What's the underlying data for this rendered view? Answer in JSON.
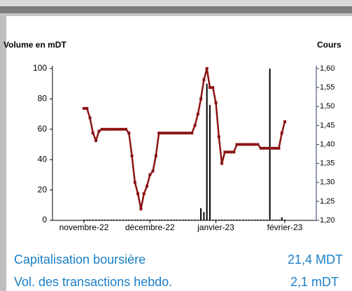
{
  "chart_data": {
    "type": "bar-line",
    "y_label": "Volume en mDT",
    "y2_label": "Cours",
    "categories": [
      null,
      null,
      null,
      null,
      null,
      null,
      null,
      null,
      null,
      null,
      "novembre-22",
      null,
      null,
      null,
      null,
      null,
      null,
      null,
      null,
      null,
      null,
      null,
      null,
      null,
      null,
      null,
      null,
      null,
      null,
      null,
      null,
      null,
      "décembre-22",
      null,
      null,
      null,
      null,
      null,
      null,
      null,
      null,
      null,
      null,
      null,
      null,
      null,
      null,
      null,
      null,
      null,
      null,
      null,
      null,
      null,
      "janvier-23",
      null,
      null,
      null,
      null,
      null,
      null,
      null,
      null,
      null,
      null,
      null,
      null,
      null,
      null,
      null,
      null,
      null,
      null,
      null,
      null,
      null,
      null,
      "février-23",
      null,
      null,
      null,
      null,
      null,
      null,
      null,
      null,
      null,
      null
    ],
    "series": [
      {
        "type": "bar",
        "color": "#000000",
        "values": [
          null,
          null,
          null,
          null,
          null,
          null,
          null,
          null,
          null,
          null,
          0.5,
          0.5,
          0.5,
          0.5,
          0.5,
          0.5,
          0.5,
          0.5,
          0.5,
          0.5,
          0.5,
          0.5,
          0.5,
          0.5,
          0.5,
          0.5,
          0.5,
          0.5,
          0.5,
          0.5,
          0.5,
          0.5,
          0.5,
          0.5,
          0.5,
          0.5,
          0.5,
          0.5,
          0.5,
          0.5,
          0.5,
          0.5,
          0.5,
          0.5,
          0.5,
          0.5,
          0.5,
          0.5,
          0.5,
          8,
          5.5,
          90,
          76,
          0.5,
          0.5,
          0.5,
          0.5,
          0.5,
          0.5,
          0.5,
          0.5,
          0.5,
          0.5,
          0.5,
          0.5,
          0.5,
          0.5,
          0.5,
          0.5,
          0.5,
          0.5,
          0.5,
          100,
          0.5,
          0.5,
          0.5,
          2,
          0.5,
          null,
          null,
          null,
          null,
          null,
          null,
          null,
          null,
          null,
          null
        ]
      },
      {
        "type": "line",
        "axis": "y2",
        "color": "#8b1414",
        "values": [
          null,
          null,
          null,
          null,
          null,
          null,
          null,
          null,
          null,
          null,
          1.495,
          1.495,
          1.47,
          1.43,
          1.41,
          1.435,
          1.44,
          1.44,
          1.44,
          1.44,
          1.44,
          1.44,
          1.44,
          1.44,
          1.44,
          1.43,
          1.37,
          1.3,
          1.27,
          1.23,
          1.27,
          1.29,
          1.32,
          1.33,
          1.37,
          1.43,
          1.43,
          1.43,
          1.43,
          1.43,
          1.43,
          1.43,
          1.43,
          1.43,
          1.43,
          1.43,
          1.43,
          1.45,
          1.48,
          1.52,
          1.57,
          1.6,
          1.55,
          1.55,
          1.51,
          1.42,
          1.35,
          1.38,
          1.38,
          1.38,
          1.38,
          1.4,
          1.4,
          1.4,
          1.4,
          1.4,
          1.4,
          1.4,
          1.4,
          1.39,
          1.39,
          1.39,
          1.39,
          1.39,
          1.39,
          1.39,
          1.43,
          1.46,
          null,
          null,
          null,
          null,
          null,
          null,
          null,
          null,
          null,
          null
        ]
      }
    ],
    "ylim": [
      0,
      100
    ],
    "yticks": [
      0,
      20,
      40,
      60,
      80,
      100
    ],
    "y2lim": [
      1.2,
      1.6
    ],
    "y2ticks": [
      {
        "value": 1.2,
        "label": "1,20"
      },
      {
        "value": 1.25,
        "label": "1,25"
      },
      {
        "value": 1.3,
        "label": "1,30"
      },
      {
        "value": 1.35,
        "label": "1,35"
      },
      {
        "value": 1.4,
        "label": "1,40"
      },
      {
        "value": 1.45,
        "label": "1,45"
      },
      {
        "value": 1.5,
        "label": "1,50"
      },
      {
        "value": 1.55,
        "label": "1,55"
      },
      {
        "value": 1.6,
        "label": "1,60"
      }
    ]
  },
  "stats": [
    {
      "label": "Capitalisation boursière",
      "value": "21,4 MDT"
    },
    {
      "label": "Vol. des transactions hebdo.",
      "value": "2,1 mDT"
    }
  ]
}
